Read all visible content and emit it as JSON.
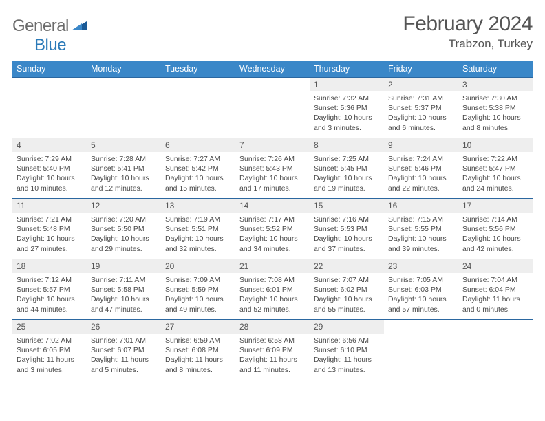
{
  "brand": {
    "part1": "General",
    "part2": "Blue"
  },
  "title": "February 2024",
  "location": "Trabzon, Turkey",
  "colors": {
    "header_bg": "#3a87c8",
    "row_border": "#2b67a0",
    "daynum_bg": "#eeeeee",
    "text": "#4a4a4a",
    "brand_blue": "#2b7ab8"
  },
  "weekdays": [
    "Sunday",
    "Monday",
    "Tuesday",
    "Wednesday",
    "Thursday",
    "Friday",
    "Saturday"
  ],
  "label": {
    "sunrise": "Sunrise:",
    "sunset": "Sunset:",
    "daylight": "Daylight:"
  },
  "weeks": [
    [
      null,
      null,
      null,
      null,
      {
        "n": "1",
        "sunrise": "7:32 AM",
        "sunset": "5:36 PM",
        "daylight": "10 hours and 3 minutes."
      },
      {
        "n": "2",
        "sunrise": "7:31 AM",
        "sunset": "5:37 PM",
        "daylight": "10 hours and 6 minutes."
      },
      {
        "n": "3",
        "sunrise": "7:30 AM",
        "sunset": "5:38 PM",
        "daylight": "10 hours and 8 minutes."
      }
    ],
    [
      {
        "n": "4",
        "sunrise": "7:29 AM",
        "sunset": "5:40 PM",
        "daylight": "10 hours and 10 minutes."
      },
      {
        "n": "5",
        "sunrise": "7:28 AM",
        "sunset": "5:41 PM",
        "daylight": "10 hours and 12 minutes."
      },
      {
        "n": "6",
        "sunrise": "7:27 AM",
        "sunset": "5:42 PM",
        "daylight": "10 hours and 15 minutes."
      },
      {
        "n": "7",
        "sunrise": "7:26 AM",
        "sunset": "5:43 PM",
        "daylight": "10 hours and 17 minutes."
      },
      {
        "n": "8",
        "sunrise": "7:25 AM",
        "sunset": "5:45 PM",
        "daylight": "10 hours and 19 minutes."
      },
      {
        "n": "9",
        "sunrise": "7:24 AM",
        "sunset": "5:46 PM",
        "daylight": "10 hours and 22 minutes."
      },
      {
        "n": "10",
        "sunrise": "7:22 AM",
        "sunset": "5:47 PM",
        "daylight": "10 hours and 24 minutes."
      }
    ],
    [
      {
        "n": "11",
        "sunrise": "7:21 AM",
        "sunset": "5:48 PM",
        "daylight": "10 hours and 27 minutes."
      },
      {
        "n": "12",
        "sunrise": "7:20 AM",
        "sunset": "5:50 PM",
        "daylight": "10 hours and 29 minutes."
      },
      {
        "n": "13",
        "sunrise": "7:19 AM",
        "sunset": "5:51 PM",
        "daylight": "10 hours and 32 minutes."
      },
      {
        "n": "14",
        "sunrise": "7:17 AM",
        "sunset": "5:52 PM",
        "daylight": "10 hours and 34 minutes."
      },
      {
        "n": "15",
        "sunrise": "7:16 AM",
        "sunset": "5:53 PM",
        "daylight": "10 hours and 37 minutes."
      },
      {
        "n": "16",
        "sunrise": "7:15 AM",
        "sunset": "5:55 PM",
        "daylight": "10 hours and 39 minutes."
      },
      {
        "n": "17",
        "sunrise": "7:14 AM",
        "sunset": "5:56 PM",
        "daylight": "10 hours and 42 minutes."
      }
    ],
    [
      {
        "n": "18",
        "sunrise": "7:12 AM",
        "sunset": "5:57 PM",
        "daylight": "10 hours and 44 minutes."
      },
      {
        "n": "19",
        "sunrise": "7:11 AM",
        "sunset": "5:58 PM",
        "daylight": "10 hours and 47 minutes."
      },
      {
        "n": "20",
        "sunrise": "7:09 AM",
        "sunset": "5:59 PM",
        "daylight": "10 hours and 49 minutes."
      },
      {
        "n": "21",
        "sunrise": "7:08 AM",
        "sunset": "6:01 PM",
        "daylight": "10 hours and 52 minutes."
      },
      {
        "n": "22",
        "sunrise": "7:07 AM",
        "sunset": "6:02 PM",
        "daylight": "10 hours and 55 minutes."
      },
      {
        "n": "23",
        "sunrise": "7:05 AM",
        "sunset": "6:03 PM",
        "daylight": "10 hours and 57 minutes."
      },
      {
        "n": "24",
        "sunrise": "7:04 AM",
        "sunset": "6:04 PM",
        "daylight": "11 hours and 0 minutes."
      }
    ],
    [
      {
        "n": "25",
        "sunrise": "7:02 AM",
        "sunset": "6:05 PM",
        "daylight": "11 hours and 3 minutes."
      },
      {
        "n": "26",
        "sunrise": "7:01 AM",
        "sunset": "6:07 PM",
        "daylight": "11 hours and 5 minutes."
      },
      {
        "n": "27",
        "sunrise": "6:59 AM",
        "sunset": "6:08 PM",
        "daylight": "11 hours and 8 minutes."
      },
      {
        "n": "28",
        "sunrise": "6:58 AM",
        "sunset": "6:09 PM",
        "daylight": "11 hours and 11 minutes."
      },
      {
        "n": "29",
        "sunrise": "6:56 AM",
        "sunset": "6:10 PM",
        "daylight": "11 hours and 13 minutes."
      },
      null,
      null
    ]
  ]
}
